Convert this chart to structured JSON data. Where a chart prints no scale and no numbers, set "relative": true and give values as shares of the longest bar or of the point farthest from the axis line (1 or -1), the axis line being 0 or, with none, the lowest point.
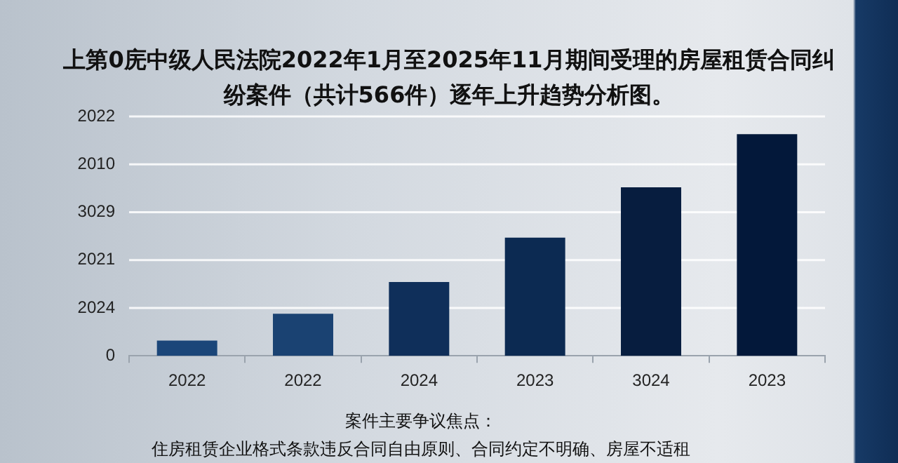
{
  "chart_data": {
    "type": "bar",
    "title": "上第0庑中级人民法院2022年1月至2025年11月期间受理的房屋租赁合同纠纷案件（共计566件）逐年上升趋势分析图。",
    "categories": [
      "2022",
      "2022",
      "2024",
      "2023",
      "3024",
      "2023"
    ],
    "values": [
      0.069,
      0.19,
      0.333,
      0.533,
      0.76,
      1
    ],
    "colors": [
      "#1b4679",
      "#1a4272",
      "#0f2f5a",
      "#0c2a52",
      "#071d3f",
      "#03183a"
    ],
    "relative": true,
    "grid": "y",
    "legend": false,
    "annotations": [
      "案件主要争议焦点：",
      "住房租赁企业格式条款违反合同自由原则、合同约定不明确、房屋不适租",
      "0",
      "2024",
      "2021",
      "3029",
      "2010",
      "2022"
    ]
  }
}
